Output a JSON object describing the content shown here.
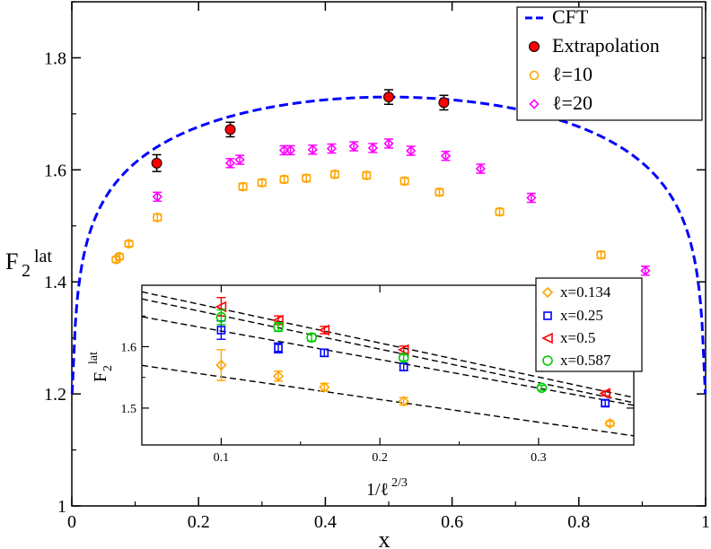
{
  "chart_data": [
    {
      "type": "scatter",
      "xlabel": "x",
      "ylabel": "F",
      "ylabel_sub": "2",
      "ylabel_sup": "lat",
      "xlim": [
        0,
        1
      ],
      "ylim": [
        1.0,
        1.9
      ],
      "xticks": [
        0,
        0.2,
        0.4,
        0.6,
        0.8,
        1
      ],
      "xtick_labels": [
        "0",
        "0.2",
        "0.4",
        "0.6",
        "0.8",
        "1"
      ],
      "yticks": [
        1.0,
        1.2,
        1.4,
        1.6,
        1.8
      ],
      "ytick_labels": [
        "1",
        "1.2",
        "1.4",
        "1.6",
        "1.8"
      ],
      "grid": false,
      "legend_position": "top-right",
      "series": [
        {
          "name": "CFT",
          "kind": "dashed-curve",
          "color": "#0000ff",
          "formula": "1 + 0.1*log(sin(pi*x)) + 0.73",
          "points": []
        },
        {
          "name": "Extrapolation",
          "kind": "filled-circle",
          "color": "#ff0000",
          "x": [
            0.134,
            0.25,
            0.5,
            0.587
          ],
          "y": [
            1.612,
            1.672,
            1.73,
            1.72
          ],
          "err": [
            0.015,
            0.013,
            0.013,
            0.013
          ]
        },
        {
          "name": "ℓ=10",
          "kind": "open-circle",
          "color": "#ffa500",
          "x": [
            0.07,
            0.075,
            0.09,
            0.135,
            0.27,
            0.3,
            0.335,
            0.37,
            0.415,
            0.465,
            0.525,
            0.58,
            0.675,
            0.835
          ],
          "y": [
            1.44,
            1.445,
            1.468,
            1.515,
            1.57,
            1.577,
            1.583,
            1.585,
            1.592,
            1.59,
            1.58,
            1.56,
            1.525,
            1.448
          ],
          "err": [
            0.005,
            0.005,
            0.005,
            0.006,
            0.006,
            0.006,
            0.006,
            0.006,
            0.006,
            0.006,
            0.006,
            0.006,
            0.006,
            0.006
          ]
        },
        {
          "name": "ℓ=20",
          "kind": "open-diamond",
          "color": "#ff00ff",
          "x": [
            0.135,
            0.25,
            0.265,
            0.335,
            0.345,
            0.38,
            0.41,
            0.445,
            0.475,
            0.5,
            0.535,
            0.59,
            0.645,
            0.725,
            0.905
          ],
          "y": [
            1.552,
            1.612,
            1.618,
            1.635,
            1.635,
            1.636,
            1.638,
            1.642,
            1.639,
            1.647,
            1.634,
            1.625,
            1.602,
            1.55,
            1.42
          ],
          "err": [
            0.008,
            0.008,
            0.008,
            0.008,
            0.008,
            0.008,
            0.008,
            0.008,
            0.008,
            0.008,
            0.008,
            0.008,
            0.008,
            0.008,
            0.008
          ]
        }
      ]
    },
    {
      "type": "scatter",
      "xlabel": "1/ℓ",
      "xlabel_sup": "2/3",
      "ylabel": "F",
      "ylabel_sub": "2",
      "ylabel_sup": "lat",
      "xlim": [
        0.05,
        0.36
      ],
      "ylim": [
        1.44,
        1.7
      ],
      "xticks": [
        0.1,
        0.2,
        0.3
      ],
      "xtick_labels": [
        "0.1",
        "0.2",
        "0.3"
      ],
      "yticks": [
        1.5,
        1.6
      ],
      "ytick_labels": [
        "1.5",
        "1.6"
      ],
      "grid": false,
      "legend_position": "top-right",
      "series": [
        {
          "name": "x=0.134",
          "kind": "open-diamond",
          "color": "#ffa500",
          "x": [
            0.1,
            0.136,
            0.165,
            0.215,
            0.345
          ],
          "y": [
            1.57,
            1.552,
            1.534,
            1.511,
            1.475
          ],
          "err": [
            0.025,
            0.008,
            0.006,
            0.006,
            0.004
          ],
          "fit": [
            1.588,
            -0.37
          ]
        },
        {
          "name": "x=0.25",
          "kind": "open-square",
          "color": "#0000ff",
          "x": [
            0.1,
            0.136,
            0.165,
            0.215,
            0.342
          ],
          "y": [
            1.627,
            1.598,
            1.59,
            1.567,
            1.508
          ],
          "err": [
            0.015,
            0.008,
            0.006,
            0.006,
            0.005
          ],
          "fit": [
            1.672,
            -0.465
          ]
        },
        {
          "name": "x=0.5",
          "kind": "open-triangle-left",
          "color": "#ff0000",
          "x": [
            0.1,
            0.136,
            0.165,
            0.215,
            0.342
          ],
          "y": [
            1.665,
            1.643,
            1.627,
            1.595,
            1.524
          ],
          "err": [
            0.015,
            0.007,
            0.006,
            0.006,
            0.004
          ],
          "fit": [
            1.717,
            -0.555
          ]
        },
        {
          "name": "x=0.587",
          "kind": "open-circle",
          "color": "#00cc00",
          "x": [
            0.1,
            0.136,
            0.157,
            0.215,
            0.302
          ],
          "y": [
            1.648,
            1.632,
            1.615,
            1.582,
            1.533
          ],
          "err": [
            0.012,
            0.007,
            0.006,
            0.005,
            0.004
          ],
          "fit": [
            1.705,
            -0.545
          ]
        }
      ]
    }
  ]
}
